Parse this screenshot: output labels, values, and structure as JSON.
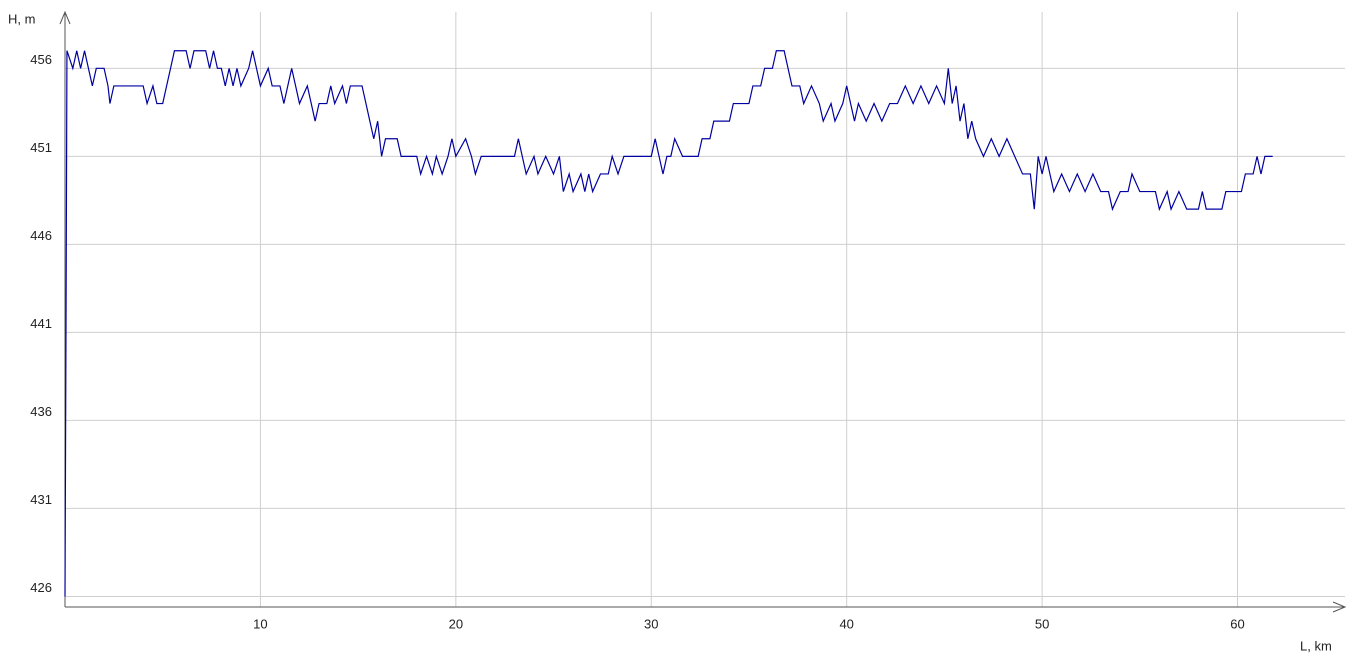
{
  "chart_data": {
    "type": "line",
    "ylabel": "H, m",
    "xlabel": "L, km",
    "x": [
      0,
      0.05,
      0.1,
      0.4,
      0.6,
      0.8,
      1.0,
      1.2,
      1.4,
      1.6,
      2.0,
      2.2,
      2.3,
      2.5,
      4.0,
      4.2,
      4.5,
      4.7,
      5.0,
      5.2,
      5.4,
      5.6,
      6.2,
      6.4,
      6.6,
      7.2,
      7.4,
      7.6,
      7.8,
      8.0,
      8.2,
      8.4,
      8.6,
      8.8,
      9.0,
      9.4,
      9.6,
      9.8,
      10.0,
      10.4,
      10.6,
      11.0,
      11.2,
      11.4,
      11.6,
      11.8,
      12.0,
      12.4,
      12.6,
      12.8,
      13.0,
      13.4,
      13.6,
      13.8,
      14.2,
      14.4,
      14.6,
      15.2,
      15.4,
      15.6,
      15.8,
      16.0,
      16.2,
      16.4,
      17.0,
      17.2,
      18.0,
      18.2,
      18.5,
      18.8,
      19.0,
      19.3,
      19.6,
      19.8,
      20.0,
      20.5,
      20.8,
      21.0,
      21.3,
      23.0,
      23.2,
      23.4,
      23.6,
      24.0,
      24.2,
      24.6,
      25.0,
      25.3,
      25.5,
      25.8,
      26.0,
      26.4,
      26.6,
      26.8,
      27.0,
      27.4,
      27.8,
      28.0,
      28.3,
      28.6,
      30.0,
      30.2,
      30.4,
      30.6,
      30.8,
      31.0,
      31.2,
      31.6,
      32.4,
      32.6,
      33.0,
      33.2,
      34.0,
      34.2,
      35.0,
      35.2,
      35.6,
      35.8,
      36.2,
      36.4,
      36.8,
      37.0,
      37.2,
      37.6,
      37.8,
      38.2,
      38.6,
      38.8,
      39.2,
      39.4,
      39.8,
      40.0,
      40.2,
      40.4,
      40.6,
      41.0,
      41.4,
      41.8,
      42.2,
      42.6,
      43.0,
      43.4,
      43.8,
      44.2,
      44.6,
      45.0,
      45.2,
      45.4,
      45.6,
      45.8,
      46.0,
      46.2,
      46.4,
      46.6,
      47.0,
      47.4,
      47.8,
      48.2,
      48.6,
      49.0,
      49.4,
      49.6,
      49.8,
      50.0,
      50.2,
      50.4,
      50.6,
      51.0,
      51.4,
      51.8,
      52.2,
      52.6,
      53.0,
      53.4,
      53.6,
      54.0,
      54.4,
      54.6,
      55.0,
      55.8,
      56.0,
      56.4,
      56.6,
      57.0,
      57.4,
      58.0,
      58.2,
      58.4,
      59.2,
      59.4,
      60.2,
      60.4,
      60.8,
      61.0,
      61.2,
      61.4,
      61.8
    ],
    "series": [
      {
        "color": "#0000a0",
        "values": [
          426,
          441,
          457,
          456,
          457,
          456,
          457,
          456,
          455,
          456,
          456,
          455,
          454,
          455,
          455,
          454,
          455,
          454,
          454,
          455,
          456,
          457,
          457,
          456,
          457,
          457,
          456,
          457,
          456,
          456,
          455,
          456,
          455,
          456,
          455,
          456,
          457,
          456,
          455,
          456,
          455,
          455,
          454,
          455,
          456,
          455,
          454,
          455,
          454,
          453,
          454,
          454,
          455,
          454,
          455,
          454,
          455,
          455,
          454,
          453,
          452,
          453,
          451,
          452,
          452,
          451,
          451,
          450,
          451,
          450,
          451,
          450,
          451,
          452,
          451,
          452,
          451,
          450,
          451,
          451,
          452,
          451,
          450,
          451,
          450,
          451,
          450,
          451,
          449,
          450,
          449,
          450,
          449,
          450,
          449,
          450,
          450,
          451,
          450,
          451,
          451,
          452,
          451,
          450,
          451,
          451,
          452,
          451,
          451,
          452,
          452,
          453,
          453,
          454,
          454,
          455,
          455,
          456,
          456,
          457,
          457,
          456,
          455,
          455,
          454,
          455,
          454,
          453,
          454,
          453,
          454,
          455,
          454,
          453,
          454,
          453,
          454,
          453,
          454,
          454,
          455,
          454,
          455,
          454,
          455,
          454,
          456,
          454,
          455,
          453,
          454,
          452,
          453,
          452,
          451,
          452,
          451,
          452,
          451,
          450,
          450,
          448,
          451,
          450,
          451,
          450,
          449,
          450,
          449,
          450,
          449,
          450,
          449,
          449,
          448,
          449,
          449,
          450,
          449,
          449,
          448,
          449,
          448,
          449,
          448,
          448,
          449,
          448,
          448,
          449,
          449,
          450,
          450,
          451,
          450,
          451,
          451
        ]
      }
    ],
    "xlim": [
      0,
      65.5
    ],
    "ylim": [
      425.4,
      459.2
    ],
    "xticks": [
      10,
      20,
      30,
      40,
      50,
      60
    ],
    "yticks": [
      426,
      431,
      436,
      441,
      446,
      451,
      456
    ],
    "grid": true
  }
}
